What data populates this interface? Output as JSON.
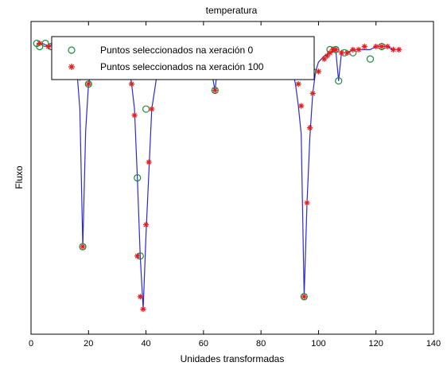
{
  "chart_data": {
    "type": "line",
    "title": "temperatura",
    "xlabel": "Unidades transformadas",
    "ylabel": "Fluxo",
    "xlim": [
      0,
      140
    ],
    "ylim": [
      0,
      1
    ],
    "xticks": [
      0,
      20,
      40,
      60,
      80,
      100,
      120,
      140
    ],
    "grid": false,
    "legend_position": "top-left",
    "colors": {
      "line": "#2a2ad6",
      "gen0": "#1f8a3a",
      "gen100": "#e02020",
      "axes": "#000000"
    },
    "line": {
      "x": [
        2,
        4,
        6,
        8,
        10,
        12,
        14,
        15,
        16,
        17,
        18,
        19,
        20,
        22,
        24,
        25,
        26,
        28,
        30,
        32,
        34,
        35,
        36,
        37,
        38,
        39,
        40,
        41,
        42,
        44,
        46,
        48,
        50,
        52,
        54,
        56,
        58,
        60,
        62,
        63,
        64,
        65,
        66,
        68,
        70,
        72,
        74,
        76,
        78,
        80,
        82,
        84,
        86,
        88,
        90,
        91,
        92,
        93,
        94,
        95,
        96,
        97,
        98,
        99,
        100,
        102,
        104,
        106,
        107,
        108,
        110,
        112,
        114,
        116,
        118,
        120,
        122,
        124,
        126,
        128
      ],
      "y": [
        0.93,
        0.93,
        0.92,
        0.93,
        0.92,
        0.93,
        0.92,
        0.89,
        0.84,
        0.72,
        0.28,
        0.65,
        0.8,
        0.88,
        0.91,
        0.87,
        0.83,
        0.91,
        0.92,
        0.9,
        0.86,
        0.8,
        0.72,
        0.5,
        0.25,
        0.08,
        0.32,
        0.52,
        0.72,
        0.84,
        0.88,
        0.92,
        0.92,
        0.92,
        0.93,
        0.93,
        0.92,
        0.92,
        0.9,
        0.83,
        0.78,
        0.86,
        0.92,
        0.92,
        0.92,
        0.91,
        0.91,
        0.91,
        0.92,
        0.92,
        0.92,
        0.92,
        0.92,
        0.91,
        0.88,
        0.84,
        0.8,
        0.73,
        0.64,
        0.12,
        0.42,
        0.63,
        0.77,
        0.84,
        0.87,
        0.89,
        0.9,
        0.91,
        0.81,
        0.9,
        0.9,
        0.91,
        0.91,
        0.91,
        0.91,
        0.92,
        0.92,
        0.92,
        0.91,
        0.91
      ]
    },
    "series": [
      {
        "name": "Puntos seleccionados na xeración 0",
        "marker": "circle",
        "x": [
          2,
          3,
          5,
          7,
          9,
          11,
          14,
          16,
          18,
          20,
          23,
          26,
          28,
          32,
          37,
          38,
          40,
          44,
          47,
          52,
          56,
          61,
          64,
          66,
          68,
          74,
          76,
          78,
          80,
          82,
          86,
          92,
          95,
          98,
          104,
          106,
          107,
          109,
          112,
          118,
          122
        ],
        "y": [
          0.93,
          0.92,
          0.93,
          0.92,
          0.93,
          0.92,
          0.91,
          0.89,
          0.28,
          0.8,
          0.9,
          0.83,
          0.91,
          0.9,
          0.5,
          0.25,
          0.72,
          0.84,
          0.9,
          0.92,
          0.94,
          0.93,
          0.78,
          0.92,
          0.92,
          0.9,
          0.9,
          0.91,
          0.91,
          0.92,
          0.92,
          0.84,
          0.12,
          0.84,
          0.91,
          0.91,
          0.81,
          0.9,
          0.9,
          0.88,
          0.92
        ]
      },
      {
        "name": "Puntos seleccionados na xeración 100",
        "marker": "star",
        "x": [
          3,
          6,
          8,
          10,
          13,
          15,
          16,
          17,
          18,
          20,
          22,
          24,
          26,
          28,
          30,
          33,
          34,
          35,
          36,
          37,
          38,
          39,
          40,
          41,
          42,
          44,
          48,
          50,
          51,
          53,
          57,
          60,
          63,
          64,
          66,
          68,
          70,
          75,
          80,
          84,
          88,
          91,
          92,
          93,
          94,
          95,
          96,
          97,
          98,
          100,
          102,
          103,
          104,
          105,
          106,
          108,
          110,
          112,
          114,
          116,
          120,
          122,
          124,
          126,
          128
        ],
        "y": [
          0.93,
          0.92,
          0.93,
          0.92,
          0.93,
          0.92,
          0.86,
          0.82,
          0.28,
          0.8,
          0.88,
          0.91,
          0.86,
          0.91,
          0.92,
          0.88,
          0.85,
          0.8,
          0.7,
          0.25,
          0.12,
          0.08,
          0.35,
          0.55,
          0.72,
          0.86,
          0.92,
          0.92,
          0.92,
          0.93,
          0.92,
          0.92,
          0.83,
          0.78,
          0.92,
          0.92,
          0.91,
          0.91,
          0.92,
          0.92,
          0.91,
          0.88,
          0.84,
          0.8,
          0.73,
          0.12,
          0.42,
          0.66,
          0.77,
          0.84,
          0.88,
          0.89,
          0.9,
          0.91,
          0.91,
          0.9,
          0.9,
          0.91,
          0.91,
          0.92,
          0.92,
          0.92,
          0.92,
          0.91,
          0.91
        ]
      }
    ]
  }
}
